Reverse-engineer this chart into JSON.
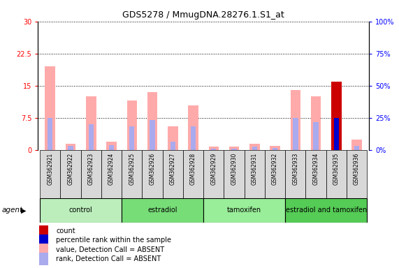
{
  "title": "GDS5278 / MmugDNA.28276.1.S1_at",
  "samples": [
    "GSM362921",
    "GSM362922",
    "GSM362923",
    "GSM362924",
    "GSM362925",
    "GSM362926",
    "GSM362927",
    "GSM362928",
    "GSM362929",
    "GSM362930",
    "GSM362931",
    "GSM362932",
    "GSM362933",
    "GSM362934",
    "GSM362935",
    "GSM362936"
  ],
  "value_absent": [
    19.5,
    1.5,
    12.5,
    2.0,
    11.5,
    13.5,
    5.5,
    10.5,
    0.9,
    0.8,
    1.5,
    1.0,
    14.0,
    12.5,
    0.0,
    2.5
  ],
  "rank_absent": [
    7.5,
    1.0,
    6.0,
    1.2,
    5.5,
    7.0,
    2.0,
    5.5,
    0.4,
    0.3,
    0.9,
    0.5,
    7.5,
    6.5,
    0.0,
    1.0
  ],
  "count_value": [
    0,
    0,
    0,
    0,
    0,
    0,
    0,
    0,
    0,
    0,
    0,
    0,
    0,
    0,
    16.0,
    0
  ],
  "rank_present": [
    0,
    0,
    0,
    0,
    0,
    0,
    0,
    0,
    0,
    0,
    0,
    0,
    0,
    0,
    7.5,
    0
  ],
  "ylim_left": [
    0,
    30
  ],
  "ylim_right": [
    0,
    100
  ],
  "yticks_left": [
    0,
    7.5,
    15,
    22.5,
    30
  ],
  "yticks_right": [
    0,
    25,
    50,
    75,
    100
  ],
  "ytick_labels_left": [
    "0",
    "7.5",
    "15",
    "22.5",
    "30"
  ],
  "ytick_labels_right": [
    "0%",
    "25%",
    "50%",
    "75%",
    "100%"
  ],
  "groups": [
    {
      "label": "control",
      "start": 0,
      "end": 4,
      "color": "#bbeebb"
    },
    {
      "label": "estradiol",
      "start": 4,
      "end": 8,
      "color": "#77dd77"
    },
    {
      "label": "tamoxifen",
      "start": 8,
      "end": 12,
      "color": "#99ee99"
    },
    {
      "label": "estradiol and tamoxifen",
      "start": 12,
      "end": 16,
      "color": "#55cc55"
    }
  ],
  "color_value_absent": "#ffaaaa",
  "color_rank_absent": "#aaaaee",
  "color_count": "#cc0000",
  "color_rank_present": "#0000cc",
  "bar_width": 0.5,
  "rank_bar_width": 0.25,
  "plot_bg": "white",
  "sample_bg": "#d8d8d8",
  "agent_label": "agent",
  "legend_items": [
    {
      "color": "#cc0000",
      "label": "count"
    },
    {
      "color": "#0000cc",
      "label": "percentile rank within the sample"
    },
    {
      "color": "#ffaaaa",
      "label": "value, Detection Call = ABSENT"
    },
    {
      "color": "#aaaaee",
      "label": "rank, Detection Call = ABSENT"
    }
  ]
}
